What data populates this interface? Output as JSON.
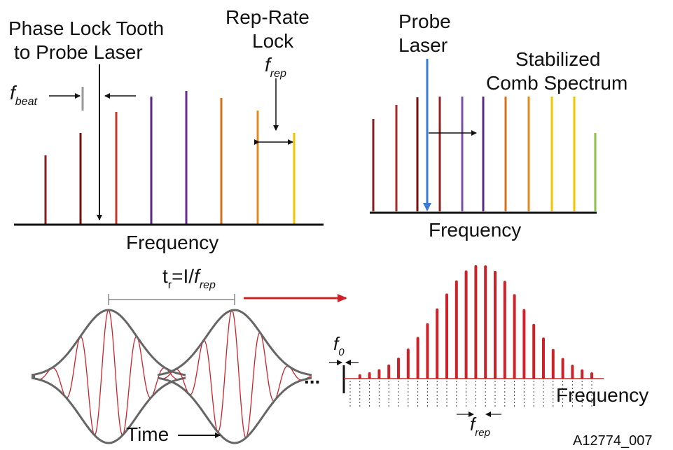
{
  "panel_a": {
    "title_line1": "Phase Lock Tooth",
    "title_line2": "to Probe Laser",
    "rep_rate_line1": "Rep-Rate",
    "rep_rate_line2": "Lock",
    "frep_symbol": "f",
    "frep_sub": "rep",
    "fbeat_symbol": "f",
    "fbeat_sub": "beat",
    "axis_label": "Frequency",
    "comb_colors": [
      "#8b1c1c",
      "#7a0f0f",
      "#c0392b",
      "#5b2a86",
      "#6a2c91",
      "#d4701c",
      "#e08a1e",
      "#f2c500"
    ]
  },
  "panel_b": {
    "probe_line1": "Probe",
    "probe_line2": "Laser",
    "title_line1": "Stabilized",
    "title_line2": "Comb Spectrum",
    "axis_label": "Frequency",
    "probe_color": "#3a7bd5",
    "comb_colors": [
      "#8b1c1c",
      "#a52a2a",
      "#7a0f0f",
      "#8b2323",
      "#7b4fa8",
      "#5b2a86",
      "#d4701c",
      "#e08a1e",
      "#f2c500",
      "#f2c500",
      "#8bc34a"
    ]
  },
  "panel_c": {
    "tr_symbol": "t",
    "tr_sub": "r",
    "tr_mid": "=I/",
    "tr_f": "f",
    "tr_rep": "rep",
    "time_label": "Time",
    "ellipsis": "...",
    "f0_symbol": "f",
    "f0_sub": "0",
    "freq_label": "Frequency",
    "frep_symbol": "f",
    "frep_sub": "rep",
    "figure_id": "A12774_007",
    "arrow_color": "#cc2229",
    "envelope_color": "#666666",
    "carrier_color": "#cc2229"
  }
}
